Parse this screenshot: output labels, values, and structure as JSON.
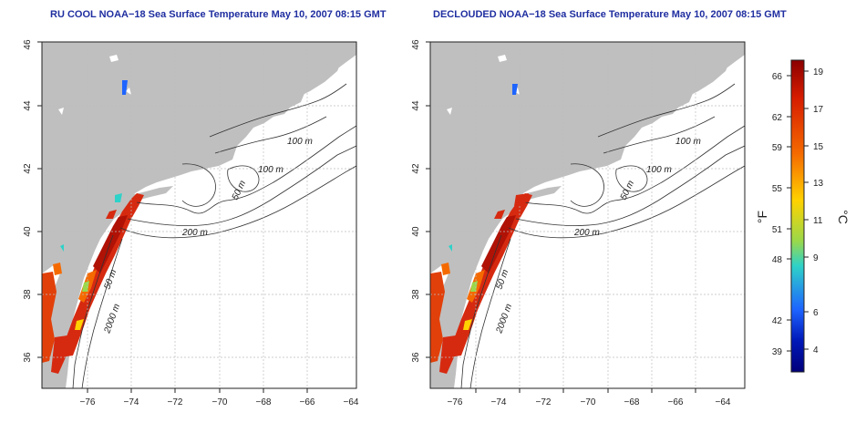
{
  "maps": [
    {
      "title": "RU COOL NOAA−18 Sea Surface Temperature May 10, 2007 08:15 GMT"
    },
    {
      "title": "DECLOUDED NOAA−18 Sea Surface Temperature May 10, 2007 08:15 GMT"
    }
  ],
  "axes": {
    "lon_ticks": [
      "−76",
      "−74",
      "−72",
      "−70",
      "−68",
      "−66",
      "−64"
    ],
    "lat_ticks": [
      "36",
      "38",
      "40",
      "42",
      "44",
      "46"
    ],
    "lon_range": [
      -77,
      -63
    ],
    "lat_range": [
      35,
      46
    ]
  },
  "contour_labels": {
    "left": [
      "100 m",
      "100 m",
      "50 m",
      "200 m",
      "50 m",
      "2000 m"
    ],
    "right": [
      "100 m",
      "100 m",
      "50 m",
      "200 m",
      "50 m",
      "2000 m"
    ]
  },
  "colorbar": {
    "fahrenheit_ticks": [
      "66",
      "62",
      "59",
      "55",
      "51",
      "48",
      "42",
      "39"
    ],
    "celsius_ticks": [
      "19",
      "17",
      "15",
      "13",
      "11",
      "9",
      "6",
      "4"
    ],
    "unit_f": "°F",
    "unit_c": "°C",
    "colors": [
      "#8b0000",
      "#d61c00",
      "#f56a00",
      "#ffd200",
      "#9ad84a",
      "#2ed2c8",
      "#1e64ff",
      "#0018b8",
      "#00007a"
    ]
  },
  "colors": {
    "land": "#bfbfbf",
    "grid": "#bdbdbd",
    "title": "#1f2ea0"
  }
}
